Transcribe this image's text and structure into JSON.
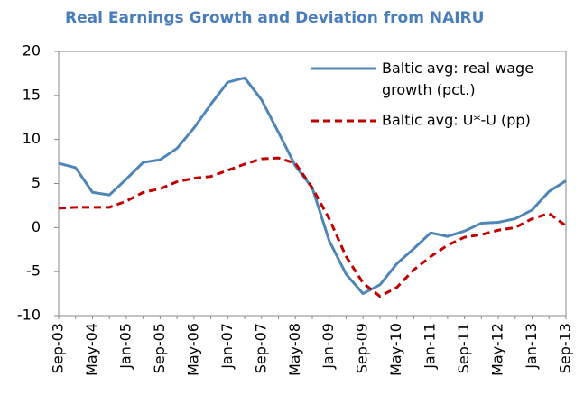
{
  "chart_data": {
    "type": "line",
    "title": "Real Earnings Growth and Deviation from NAIRU",
    "categories": [
      "Sep-03",
      null,
      "May-04",
      null,
      "Jan-05",
      null,
      "Sep-05",
      null,
      "May-06",
      null,
      "Jan-07",
      null,
      "Sep-07",
      null,
      "May-08",
      null,
      "Jan-09",
      null,
      "Sep-09",
      null,
      "May-10",
      null,
      "Jan-11",
      null,
      "Sep-11",
      null,
      "May-12",
      null,
      "Jan-13",
      null,
      "Sep-13"
    ],
    "series": [
      {
        "name": "Baltic avg: real wage growth (pct.)",
        "color": "#4f86b7",
        "style": "solid",
        "values": [
          7.3,
          6.8,
          4.0,
          3.7,
          5.5,
          7.4,
          7.7,
          9.0,
          11.3,
          14.0,
          16.5,
          17.0,
          14.5,
          10.8,
          7.0,
          4.5,
          -1.5,
          -5.3,
          -7.5,
          -6.5,
          -4.1,
          -2.4,
          -0.6,
          -1.0,
          -0.4,
          0.5,
          0.6,
          1.0,
          2.0,
          4.1,
          5.3
        ]
      },
      {
        "name": "Baltic avg: U*-U (pp)",
        "color": "#c00000",
        "style": "dashed",
        "values": [
          2.2,
          2.3,
          2.3,
          2.3,
          3.0,
          4.0,
          4.4,
          5.2,
          5.6,
          5.8,
          6.5,
          7.2,
          7.8,
          7.9,
          7.3,
          4.5,
          1.0,
          -3.3,
          -6.3,
          -7.8,
          -6.8,
          -4.8,
          -3.3,
          -2.0,
          -1.1,
          -0.8,
          -0.3,
          0.0,
          1.0,
          1.6,
          0.2
        ]
      }
    ],
    "ylim": [
      -10,
      20
    ],
    "yticks": [
      -10,
      -5,
      0,
      5,
      10,
      15,
      20
    ],
    "grid": false,
    "legend": "upper right"
  }
}
